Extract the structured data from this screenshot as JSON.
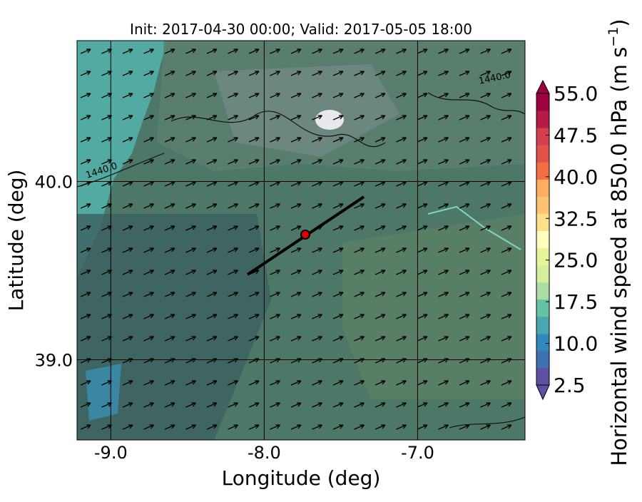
{
  "map": {
    "title": "Init: 2017-04-30 00:00; Valid: 2017-05-05 18:00",
    "xlabel": "Longitude (deg)",
    "ylabel": "Latitude (deg)",
    "xlim": [
      -9.22,
      -6.3
    ],
    "ylim": [
      38.55,
      40.79
    ],
    "xticks": [
      {
        "value": -9,
        "label": "-9.0"
      },
      {
        "value": -8,
        "label": "-8.0"
      },
      {
        "value": -7,
        "label": "-7.0"
      }
    ],
    "yticks": [
      {
        "value": 39,
        "label": "39.0"
      },
      {
        "value": 40,
        "label": "40.0"
      }
    ],
    "contour_labels": [
      "1440.0",
      "1440.0"
    ],
    "colorbar": {
      "label": "Horizontal wind speed at 850.0 hPa (m s",
      "label_exponent": "−1",
      "label_end": ")",
      "lim": [
        2.5,
        55
      ],
      "ticks": [
        {
          "value": 2.5,
          "label": "2.5"
        },
        {
          "value": 10,
          "label": "10.0"
        },
        {
          "value": 17.5,
          "label": "17.5"
        },
        {
          "value": 25,
          "label": "25.0"
        },
        {
          "value": 32.5,
          "label": "32.5"
        },
        {
          "value": 40,
          "label": "40.0"
        },
        {
          "value": 47.5,
          "label": "47.5"
        },
        {
          "value": 55,
          "label": "55.0"
        }
      ],
      "colors": [
        "#5e4fa2",
        "#3f71b1",
        "#3288bd",
        "#4aa6b0",
        "#66c2a5",
        "#abdda4",
        "#d4ee9b",
        "#e6f598",
        "#ffffbf",
        "#fee08b",
        "#fdc374",
        "#fdae61",
        "#f46d43",
        "#e0524a",
        "#d53e4f",
        "#b61b48",
        "#9e0142"
      ]
    }
  }
}
